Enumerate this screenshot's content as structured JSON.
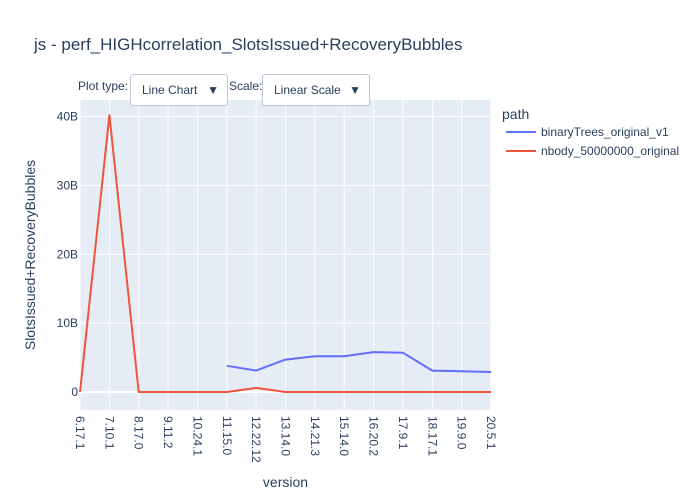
{
  "controls": {
    "plot_type_label": "Plot type:",
    "plot_type_value": "Line Chart",
    "scale_label": "Scale:",
    "scale_value": "Linear Scale",
    "arrow_glyph": "▼"
  },
  "chart_data": {
    "type": "line",
    "title": "js - perf_HIGHcorrelation_SlotsIssued+RecoveryBubbles",
    "xlabel": "version",
    "ylabel": "SlotsIssued+RecoveryBubbles",
    "categories": [
      "6.17.1",
      "7.10.1",
      "8.17.0",
      "9.11.2",
      "10.24.1",
      "11.15.0",
      "12.22.12",
      "13.14.0",
      "14.21.3",
      "15.14.0",
      "16.20.2",
      "17.9.1",
      "18.17.1",
      "19.9.0",
      "20.5.1"
    ],
    "ylim": [
      0,
      42000000000
    ],
    "yticks": [
      0,
      10000000000,
      20000000000,
      30000000000,
      40000000000
    ],
    "ytick_labels": [
      "0",
      "10B",
      "20B",
      "30B",
      "40B"
    ],
    "grid": true,
    "legend": {
      "title": "path",
      "placement": "right"
    },
    "series": [
      {
        "name": "binaryTrees_original_v1",
        "color": "#636efa",
        "values": [
          null,
          null,
          null,
          null,
          null,
          3800000000,
          3100000000,
          4700000000,
          5200000000,
          5200000000,
          5800000000,
          5700000000,
          3100000000,
          3000000000,
          2900000000
        ]
      },
      {
        "name": "nbody_50000000_original",
        "color": "#ef553b",
        "values": [
          0,
          40200000000,
          0,
          0,
          0,
          0,
          600000000,
          0,
          0,
          0,
          0,
          0,
          0,
          0,
          0
        ]
      }
    ]
  }
}
